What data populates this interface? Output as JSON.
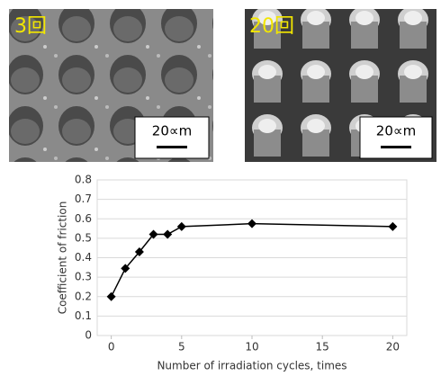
{
  "chart_data": {
    "type": "line",
    "x_label": "Number of irradiation cycles, times",
    "y_label": "Coefficient of  friction",
    "x": [
      0,
      1,
      2,
      3,
      4,
      5,
      10,
      20
    ],
    "series": [
      {
        "color": "#000000",
        "values": [
          0.2,
          0.345,
          0.43,
          0.52,
          0.52,
          0.56,
          0.575,
          0.56
        ]
      }
    ],
    "xlim": [
      -1,
      21
    ],
    "xticks": [
      0,
      5,
      10,
      15,
      20
    ],
    "ylim": [
      0,
      0.8
    ],
    "yticks": [
      0,
      0.1,
      0.2,
      0.3,
      0.4,
      0.5,
      0.6,
      0.7,
      0.8
    ],
    "grid": true
  },
  "images": [
    {
      "label": "3回",
      "scale": "20∝m"
    },
    {
      "label": "20回",
      "scale": "20∝m"
    }
  ]
}
